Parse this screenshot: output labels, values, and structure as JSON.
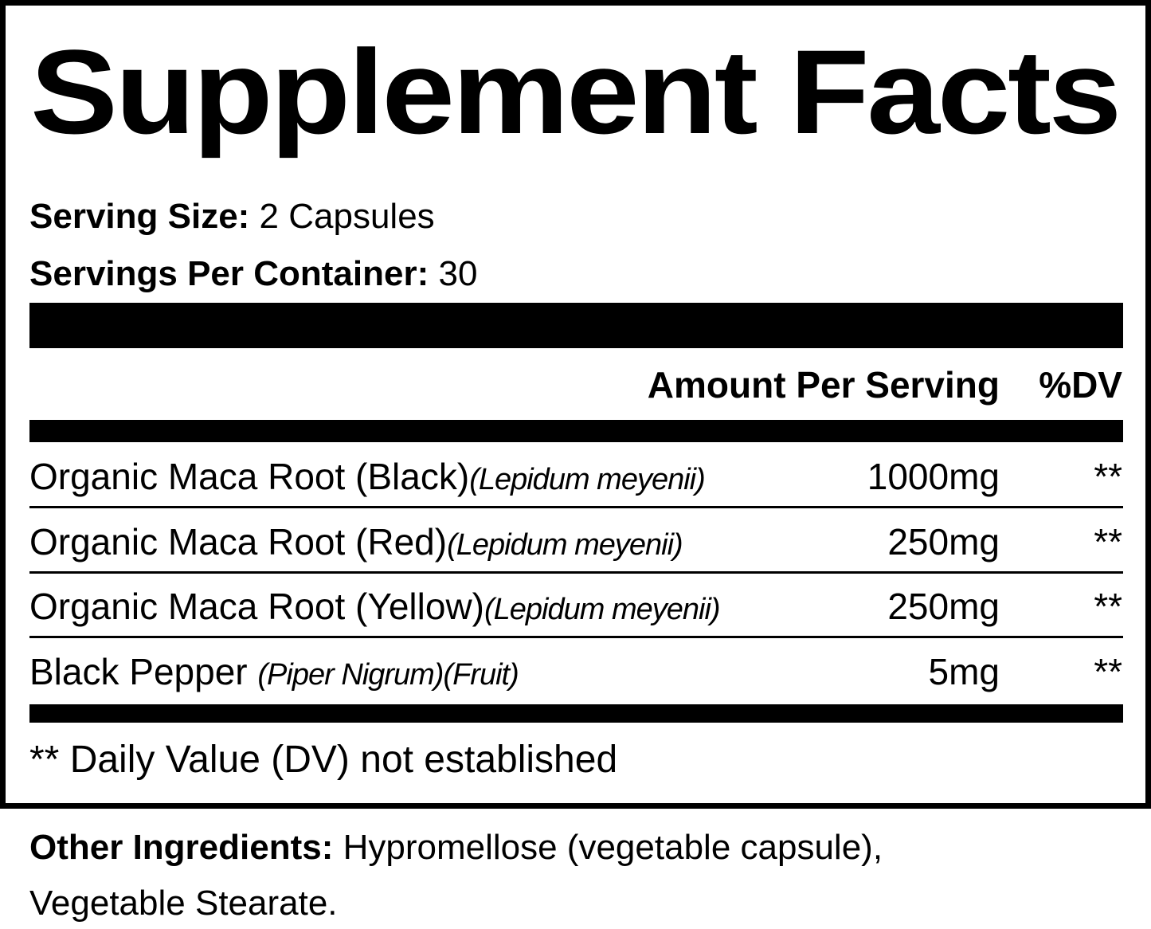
{
  "title": "Supplement Facts",
  "serving_size": {
    "label": "Serving Size:",
    "value": "2 Capsules"
  },
  "servings_per_container": {
    "label": "Servings Per Container:",
    "value": "30"
  },
  "header": {
    "amount": "Amount Per Serving",
    "dv": "%DV"
  },
  "rows": [
    {
      "name": "Organic Maca Root (Black)",
      "latin": "(Lepidum meyenii)",
      "amount": "1000mg",
      "dv": "**"
    },
    {
      "name": "Organic Maca Root (Red)",
      "latin": "(Lepidum meyenii)",
      "amount": "250mg",
      "dv": "**"
    },
    {
      "name": "Organic Maca Root (Yellow)",
      "latin": "(Lepidum meyenii)",
      "amount": "250mg",
      "dv": "**"
    },
    {
      "name": "Black Pepper ",
      "latin": "(Piper Nigrum)(Fruit)",
      "amount": "5mg",
      "dv": "**"
    }
  ],
  "footnote": "** Daily Value (DV) not established",
  "other_ingredients": {
    "label": "Other Ingredients:",
    "line1": " Hypromellose (vegetable capsule),",
    "line2": "Vegetable Stearate."
  }
}
